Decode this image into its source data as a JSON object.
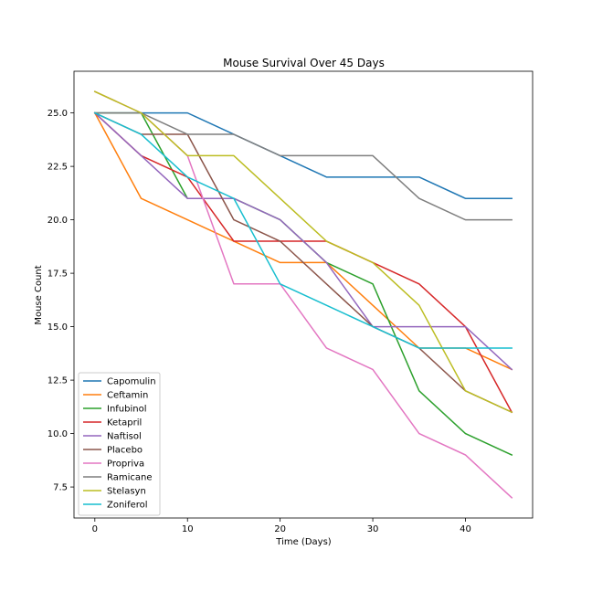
{
  "chart_data": {
    "type": "line",
    "title": "Mouse Survival Over 45 Days",
    "xlabel": "Time (Days)",
    "ylabel": "Mouse Count",
    "xlim": [
      -2.25,
      47.25
    ],
    "ylim": [
      6.05,
      26.95
    ],
    "xticks": [
      0,
      10,
      20,
      30,
      40
    ],
    "xtick_labels": [
      "0",
      "10",
      "20",
      "30",
      "40"
    ],
    "yticks": [
      7.5,
      10.0,
      12.5,
      15.0,
      17.5,
      20.0,
      22.5,
      25.0
    ],
    "ytick_labels": [
      "7.5",
      "10.0",
      "12.5",
      "15.0",
      "17.5",
      "20.0",
      "22.5",
      "25.0"
    ],
    "grid": false,
    "legend_position": "lower-left",
    "x": [
      0,
      5,
      10,
      15,
      20,
      25,
      30,
      35,
      40,
      45
    ],
    "series": [
      {
        "name": "Capomulin",
        "color": "#1f77b4",
        "values": [
          25,
          25,
          25,
          24,
          23,
          22,
          22,
          22,
          21,
          21
        ]
      },
      {
        "name": "Ceftamin",
        "color": "#ff7f0e",
        "values": [
          25,
          21,
          20,
          19,
          18,
          18,
          16,
          14,
          14,
          13
        ]
      },
      {
        "name": "Infubinol",
        "color": "#2ca02c",
        "values": [
          25,
          25,
          21,
          21,
          20,
          18,
          17,
          12,
          10,
          9
        ]
      },
      {
        "name": "Ketapril",
        "color": "#d62728",
        "values": [
          25,
          23,
          22,
          19,
          19,
          19,
          18,
          17,
          15,
          11
        ]
      },
      {
        "name": "Naftisol",
        "color": "#9467bd",
        "values": [
          25,
          23,
          21,
          21,
          20,
          18,
          15,
          15,
          15,
          13
        ]
      },
      {
        "name": "Placebo",
        "color": "#8c564b",
        "values": [
          25,
          24,
          24,
          20,
          19,
          17,
          15,
          14,
          12,
          11
        ]
      },
      {
        "name": "Propriva",
        "color": "#e377c2",
        "values": [
          26,
          25,
          23,
          17,
          17,
          14,
          13,
          10,
          9,
          7
        ]
      },
      {
        "name": "Ramicane",
        "color": "#7f7f7f",
        "values": [
          25,
          25,
          24,
          24,
          23,
          23,
          23,
          21,
          20,
          20
        ]
      },
      {
        "name": "Stelasyn",
        "color": "#bcbd22",
        "values": [
          26,
          25,
          23,
          23,
          21,
          19,
          18,
          16,
          12,
          11
        ]
      },
      {
        "name": "Zoniferol",
        "color": "#17becf",
        "values": [
          25,
          24,
          22,
          21,
          17,
          16,
          15,
          14,
          14,
          14
        ]
      }
    ]
  }
}
